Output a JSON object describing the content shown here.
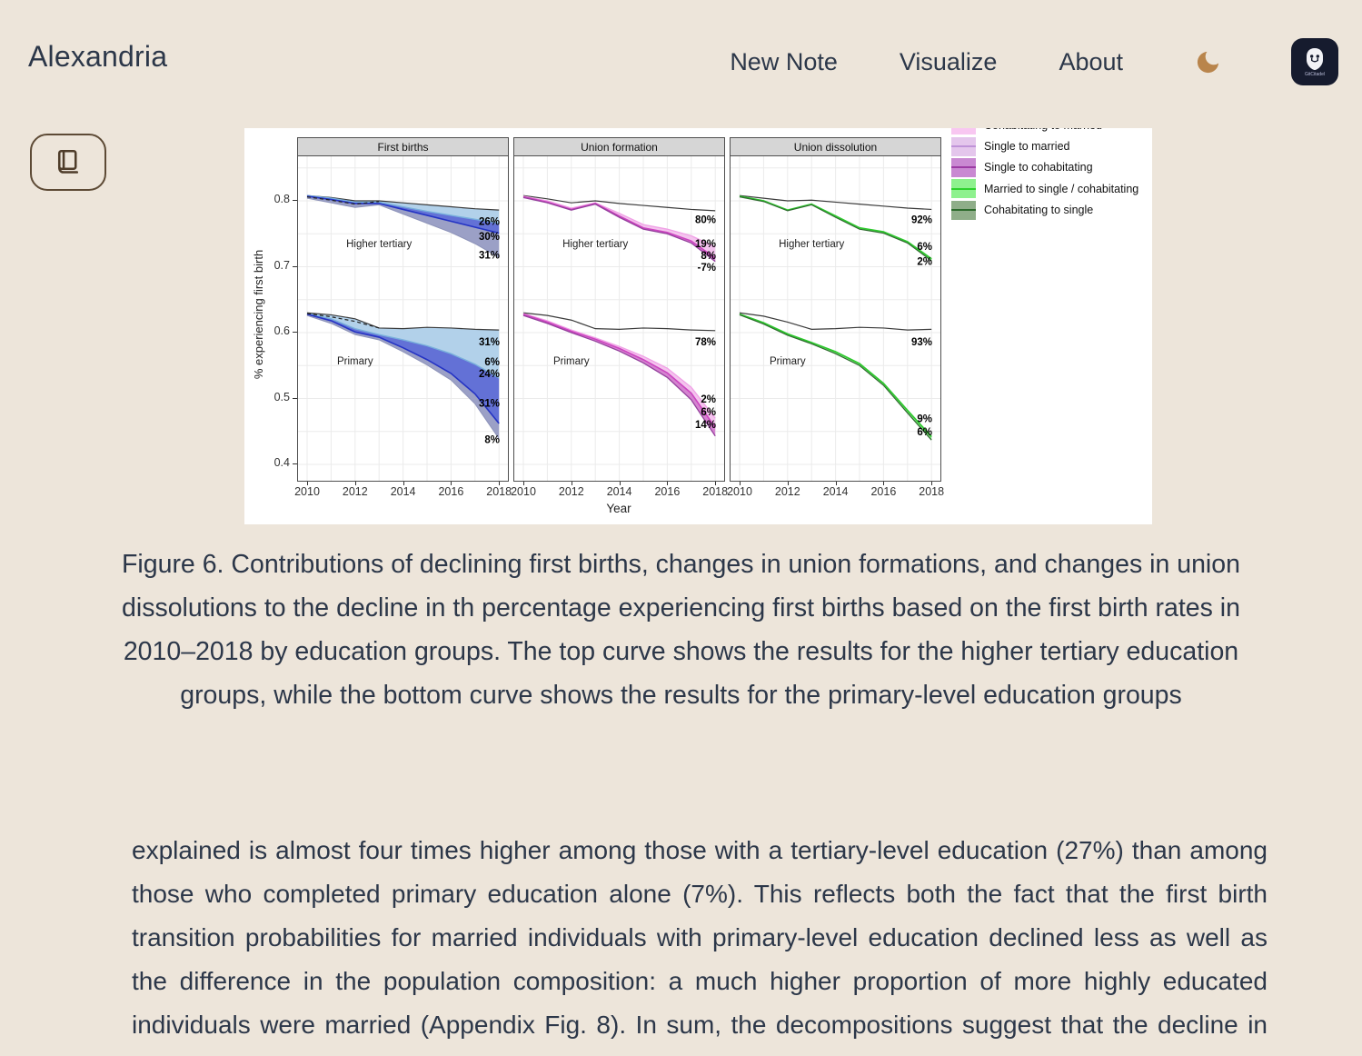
{
  "header": {
    "brand": "Alexandria",
    "nav": [
      {
        "label": "New Note"
      },
      {
        "label": "Visualize"
      },
      {
        "label": "About"
      }
    ]
  },
  "logo": {
    "text": "GitCitadel"
  },
  "theme": {
    "page_bg": "#EDE5DA",
    "text_color": "#2C3749",
    "moon_color": "#B9854C",
    "reader_border": "#5D4A35",
    "logo_bg": "#161B2E"
  },
  "figure": {
    "caption": "Figure 6. Contributions of declining first births, changes in union formations, and changes in union dissolutions to the decline in th percentage experiencing first births based on the first birth rates in 2010–2018 by education groups. The top curve shows the results for the higher tertiary education groups, while the bottom curve shows the results for the primary-level education groups"
  },
  "content": {
    "paragraph": "explained is almost four times higher among those with a tertiary-level education (27%) than among those who completed primary education alone (7%). This reflects both the fact that the first birth transition probabilities for married individuals with primary-level education declined less as well as the difference in the population composition: a much higher proportion of more highly educated individuals were married (Appendix Fig. 8). In sum, the decompositions suggest that the decline in union formations was the most important driver of the decline in first births among the primary educated."
  },
  "chart_data": {
    "type": "line",
    "x": [
      2010,
      2011,
      2012,
      2013,
      2014,
      2015,
      2016,
      2017,
      2018
    ],
    "xlabel": "Year",
    "ylabel": "% experiencing first birth",
    "yticks": [
      0.8,
      0.7,
      0.6,
      0.5,
      0.4
    ],
    "xticks": [
      2010,
      2012,
      2014,
      2016,
      2018
    ],
    "ylim": [
      0.377,
      0.868
    ],
    "grid": {
      "y_step": 0.05,
      "y_from": 0.4,
      "y_to": 0.85,
      "color": "#EBEBEB"
    },
    "legend_position": "top-right, first entry clipped by image crop",
    "legend": [
      {
        "label": "Cohabitating to married",
        "fill": "#F8C7F1",
        "line": "#F185E3"
      },
      {
        "label": "Single to married",
        "fill": "#E4C6EC",
        "line": "#BF93D8"
      },
      {
        "label": "Single to cohabitating",
        "fill": "#C989D2",
        "line": "#9C3BA4"
      },
      {
        "label": "Married to single / cohabitating",
        "fill": "#8EF18E",
        "line": "#2DD12D"
      },
      {
        "label": "Cohabitating to single",
        "fill": "#8FAE89",
        "line": "#2D6B2D"
      }
    ],
    "panels": [
      {
        "title": "First births",
        "groups": [
          {
            "label": {
              "text": "Higher tertiary",
              "year": 2013,
              "v": 0.735
            },
            "series": [
              {
                "name": "counterfactual",
                "color": "#3B3B3B",
                "w": 1.2,
                "v": [
                  0.808,
                  0.805,
                  0.8,
                  0.8,
                  0.797,
                  0.794,
                  0.791,
                  0.788,
                  0.786
                ]
              },
              {
                "name": "light-blue",
                "color": "#79B0DC",
                "w": 1.4,
                "v": [
                  0.808,
                  0.804,
                  0.798,
                  0.798,
                  0.791,
                  0.784,
                  0.778,
                  0.772,
                  0.766
                ]
              },
              {
                "name": "blue",
                "color": "#2433C4",
                "w": 1.6,
                "v": [
                  0.807,
                  0.802,
                  0.796,
                  0.796,
                  0.787,
                  0.778,
                  0.769,
                  0.76,
                  0.751
                ]
              },
              {
                "name": "slate",
                "color": "#8D93B9",
                "w": 1.0,
                "v": [
                  0.804,
                  0.797,
                  0.79,
                  0.794,
                  0.78,
                  0.766,
                  0.752,
                  0.735,
                  0.714
                ]
              },
              {
                "name": "observed-dashed",
                "color": "#222222",
                "w": 1.2,
                "dash": "4 3",
                "x": [
                  2010,
                  2011,
                  2012,
                  2013
                ],
                "v": [
                  0.806,
                  0.801,
                  0.795,
                  0.799
                ]
              }
            ],
            "bands": [
              {
                "t": 0,
                "b": 1,
                "fill": "#B2D1EA"
              },
              {
                "t": 1,
                "b": 2,
                "fill": "#6371D6"
              },
              {
                "t": 2,
                "b": 3,
                "fill": "#9BA0C6"
              }
            ],
            "annotations": [
              {
                "text": "26%",
                "v": 0.769
              },
              {
                "text": "30%",
                "v": 0.746
              },
              {
                "text": "31%",
                "v": 0.718
              }
            ]
          },
          {
            "label": {
              "text": "Primary",
              "year": 2012,
              "v": 0.557
            },
            "series": [
              {
                "name": "counterfactual",
                "color": "#3B3B3B",
                "w": 1.2,
                "v": [
                  0.63,
                  0.627,
                  0.621,
                  0.607,
                  0.606,
                  0.608,
                  0.607,
                  0.605,
                  0.604
                ]
              },
              {
                "name": "light-blue",
                "color": "#79B0DC",
                "w": 1.4,
                "v": [
                  0.629,
                  0.621,
                  0.606,
                  0.597,
                  0.589,
                  0.58,
                  0.568,
                  0.552,
                  0.531
                ]
              },
              {
                "name": "blue",
                "color": "#2433C4",
                "w": 1.6,
                "v": [
                  0.628,
                  0.618,
                  0.601,
                  0.593,
                  0.577,
                  0.559,
                  0.538,
                  0.507,
                  0.462
                ]
              },
              {
                "name": "slate",
                "color": "#8D93B9",
                "w": 1.0,
                "v": [
                  0.626,
                  0.614,
                  0.597,
                  0.589,
                  0.571,
                  0.551,
                  0.528,
                  0.492,
                  0.439
                ]
              },
              {
                "name": "observed-dashed",
                "color": "#222222",
                "w": 1.2,
                "dash": "4 3",
                "x": [
                  2010,
                  2011,
                  2012,
                  2013
                ],
                "v": [
                  0.629,
                  0.624,
                  0.617,
                  0.607
                ]
              }
            ],
            "bands": [
              {
                "t": 0,
                "b": 1,
                "fill": "#B2D1EA"
              },
              {
                "t": 1,
                "b": 2,
                "fill": "#6371D6"
              },
              {
                "t": 2,
                "b": 3,
                "fill": "#9BA0C6"
              }
            ],
            "annotations": [
              {
                "text": "31%",
                "v": 0.586
              },
              {
                "text": "6%",
                "v": 0.556
              },
              {
                "text": "24%",
                "v": 0.538
              },
              {
                "text": "31%",
                "v": 0.493
              },
              {
                "text": "8%",
                "v": 0.438
              }
            ]
          }
        ]
      },
      {
        "title": "Union formation",
        "groups": [
          {
            "label": {
              "text": "Higher tertiary",
              "year": 2013,
              "v": 0.735
            },
            "series": [
              {
                "name": "counterfactual",
                "color": "#3B3B3B",
                "w": 1.2,
                "v": [
                  0.808,
                  0.803,
                  0.797,
                  0.8,
                  0.796,
                  0.793,
                  0.79,
                  0.787,
                  0.785
                ]
              },
              {
                "name": "light-pink",
                "color": "#F0A0E6",
                "w": 1.3,
                "v": [
                  0.807,
                  0.8,
                  0.789,
                  0.797,
                  0.781,
                  0.764,
                  0.757,
                  0.747,
                  0.73
                ]
              },
              {
                "name": "magenta",
                "color": "#CC44C0",
                "w": 1.6,
                "v": [
                  0.806,
                  0.798,
                  0.787,
                  0.796,
                  0.777,
                  0.759,
                  0.752,
                  0.739,
                  0.713
                ]
              },
              {
                "name": "purple",
                "color": "#93409C",
                "w": 1.3,
                "v": [
                  0.805,
                  0.797,
                  0.786,
                  0.795,
                  0.775,
                  0.757,
                  0.75,
                  0.736,
                  0.708
                ]
              }
            ],
            "bands": [
              {
                "t": 1,
                "b": 2,
                "fill": "#F4C4EE"
              },
              {
                "t": 2,
                "b": 3,
                "fill": "#D583D0"
              }
            ],
            "annotations": [
              {
                "text": "80%",
                "v": 0.772
              },
              {
                "text": "19%",
                "v": 0.735
              },
              {
                "text": "8%",
                "v": 0.717
              },
              {
                "text": "-7%",
                "v": 0.699
              }
            ]
          },
          {
            "label": {
              "text": "Primary",
              "year": 2012,
              "v": 0.557
            },
            "series": [
              {
                "name": "counterfactual",
                "color": "#3B3B3B",
                "w": 1.2,
                "v": [
                  0.63,
                  0.626,
                  0.619,
                  0.606,
                  0.605,
                  0.607,
                  0.606,
                  0.604,
                  0.603
                ]
              },
              {
                "name": "light-pink",
                "color": "#F0A0E6",
                "w": 1.3,
                "v": [
                  0.629,
                  0.618,
                  0.604,
                  0.592,
                  0.579,
                  0.564,
                  0.546,
                  0.517,
                  0.47
                ]
              },
              {
                "name": "magenta",
                "color": "#CC44C0",
                "w": 1.6,
                "v": [
                  0.628,
                  0.616,
                  0.602,
                  0.59,
                  0.576,
                  0.559,
                  0.539,
                  0.508,
                  0.456
                ]
              },
              {
                "name": "purple",
                "color": "#93409C",
                "w": 1.3,
                "v": [
                  0.626,
                  0.614,
                  0.6,
                  0.587,
                  0.572,
                  0.554,
                  0.532,
                  0.498,
                  0.443
                ]
              }
            ],
            "bands": [
              {
                "t": 1,
                "b": 2,
                "fill": "#F4C4EE"
              },
              {
                "t": 2,
                "b": 3,
                "fill": "#D583D0"
              }
            ],
            "annotations": [
              {
                "text": "78%",
                "v": 0.586
              },
              {
                "text": "2%",
                "v": 0.499
              },
              {
                "text": "6%",
                "v": 0.48
              },
              {
                "text": "14%",
                "v": 0.461
              }
            ]
          }
        ]
      },
      {
        "title": "Union dissolution",
        "groups": [
          {
            "label": {
              "text": "Higher tertiary",
              "year": 2013,
              "v": 0.735
            },
            "series": [
              {
                "name": "counterfactual",
                "color": "#3B3B3B",
                "w": 1.2,
                "v": [
                  0.808,
                  0.804,
                  0.8,
                  0.801,
                  0.798,
                  0.795,
                  0.792,
                  0.789,
                  0.787
                ]
              },
              {
                "name": "green",
                "color": "#2DC92D",
                "w": 1.7,
                "v": [
                  0.807,
                  0.8,
                  0.786,
                  0.795,
                  0.777,
                  0.759,
                  0.753,
                  0.738,
                  0.712
                ]
              },
              {
                "name": "dark-green",
                "color": "#2E6B2E",
                "w": 1.2,
                "v": [
                  0.806,
                  0.799,
                  0.785,
                  0.794,
                  0.775,
                  0.757,
                  0.751,
                  0.736,
                  0.709
                ]
              }
            ],
            "bands": [
              {
                "t": 1,
                "b": 2,
                "fill": "#8FE78F"
              }
            ],
            "annotations": [
              {
                "text": "92%",
                "v": 0.772
              },
              {
                "text": "6%",
                "v": 0.731
              },
              {
                "text": "2%",
                "v": 0.708
              }
            ]
          },
          {
            "label": {
              "text": "Primary",
              "year": 2012,
              "v": 0.557
            },
            "series": [
              {
                "name": "counterfactual",
                "color": "#3B3B3B",
                "w": 1.2,
                "v": [
                  0.63,
                  0.625,
                  0.616,
                  0.605,
                  0.606,
                  0.608,
                  0.607,
                  0.604,
                  0.605
                ]
              },
              {
                "name": "green",
                "color": "#2DC92D",
                "w": 1.7,
                "v": [
                  0.628,
                  0.615,
                  0.598,
                  0.585,
                  0.571,
                  0.553,
                  0.523,
                  0.482,
                  0.442
                ]
              },
              {
                "name": "dark-green",
                "color": "#2E6B2E",
                "w": 1.2,
                "v": [
                  0.627,
                  0.613,
                  0.596,
                  0.583,
                  0.568,
                  0.55,
                  0.52,
                  0.478,
                  0.437
                ]
              }
            ],
            "bands": [
              {
                "t": 1,
                "b": 2,
                "fill": "#8FE78F"
              }
            ],
            "annotations": [
              {
                "text": "93%",
                "v": 0.586
              },
              {
                "text": "9%",
                "v": 0.47
              },
              {
                "text": "6%",
                "v": 0.45
              }
            ]
          }
        ]
      }
    ]
  }
}
